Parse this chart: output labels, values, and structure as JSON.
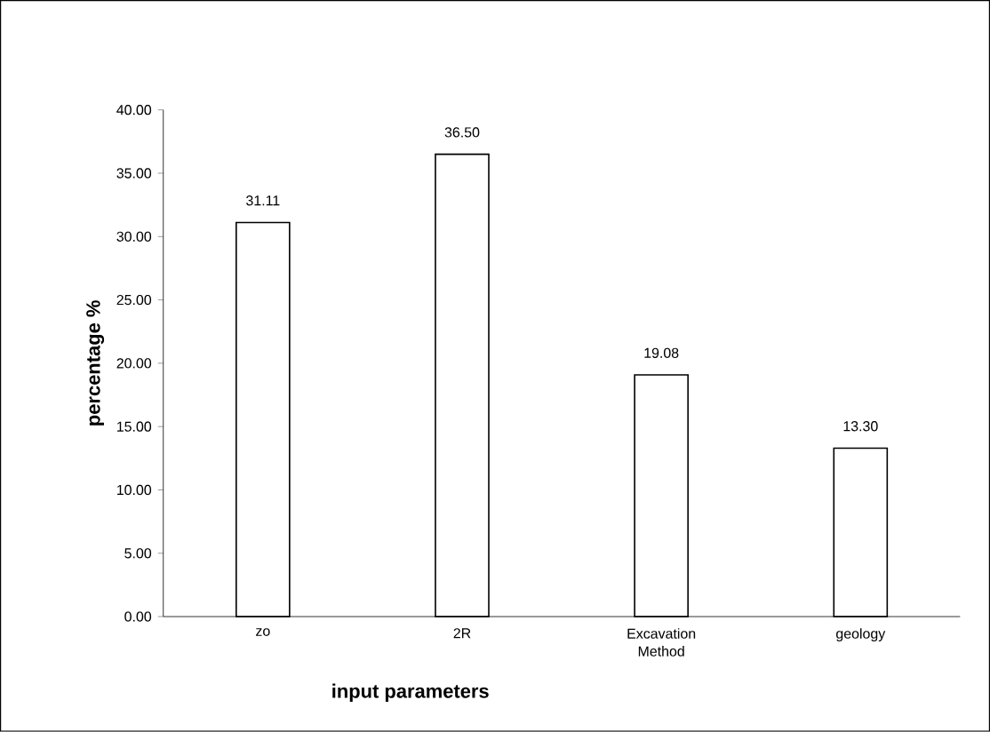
{
  "chart_data": {
    "type": "bar",
    "xlabel": "input parameters",
    "ylabel": "percentage %",
    "categories": [
      "zo",
      "2R",
      "Excavation Method",
      "geology"
    ],
    "values": [
      31.11,
      36.5,
      19.08,
      13.3
    ],
    "value_labels": [
      "31.11",
      "36.50",
      "19.08",
      "13.30"
    ],
    "color": "#ffffff",
    "ylim": [
      0,
      40
    ],
    "yticks": [
      {
        "value": 0,
        "label": "0.00"
      },
      {
        "value": 5,
        "label": "5.00"
      },
      {
        "value": 10,
        "label": "10.00"
      },
      {
        "value": 15,
        "label": "15.00"
      },
      {
        "value": 20,
        "label": "20.00"
      },
      {
        "value": 25,
        "label": "25.00"
      },
      {
        "value": 30,
        "label": "30.00"
      },
      {
        "value": 35,
        "label": "35.00"
      },
      {
        "value": 40,
        "label": "40.00"
      }
    ]
  }
}
